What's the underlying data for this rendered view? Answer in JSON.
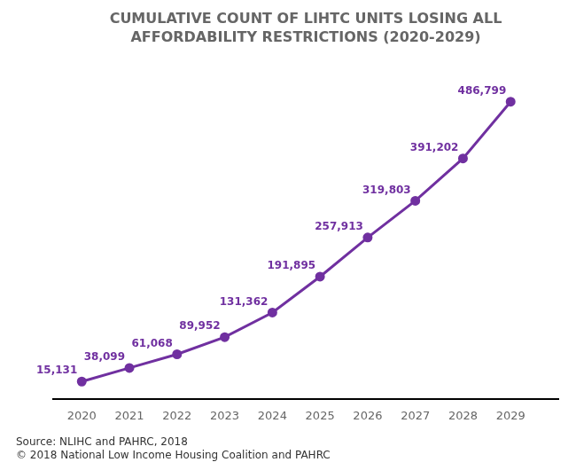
{
  "chart_data": {
    "type": "line",
    "title": "CUMULATIVE COUNT OF LIHTC UNITS LOSING ALL",
    "subtitle": "AFFORDABILITY RESTRICTIONS (2020-2029)",
    "x": [
      2020,
      2021,
      2022,
      2023,
      2024,
      2025,
      2026,
      2027,
      2028,
      2029
    ],
    "values": [
      15131,
      38099,
      61068,
      89952,
      131362,
      191895,
      257913,
      319803,
      391202,
      486799
    ],
    "value_labels": [
      "15,131",
      "38,099",
      "61,068",
      "89,952",
      "131,362",
      "191,895",
      "257,913",
      "319,803",
      "391,202",
      "486,799"
    ],
    "color": "#7030A0",
    "marker": "circle",
    "xlim": [
      2019.4,
      2030.0
    ],
    "xticks": [
      2020,
      2021,
      2022,
      2023,
      2024,
      2025,
      2026,
      2027,
      2028,
      2029
    ],
    "ylim": [
      -15000,
      550000
    ],
    "grid": false,
    "data_labels": true,
    "tick_labels": "x",
    "annotations": [
      "Source: NLIHC and PAHRC, 2018\n© 2018 National Low Income Housing Coalition and PAHRC"
    ]
  }
}
